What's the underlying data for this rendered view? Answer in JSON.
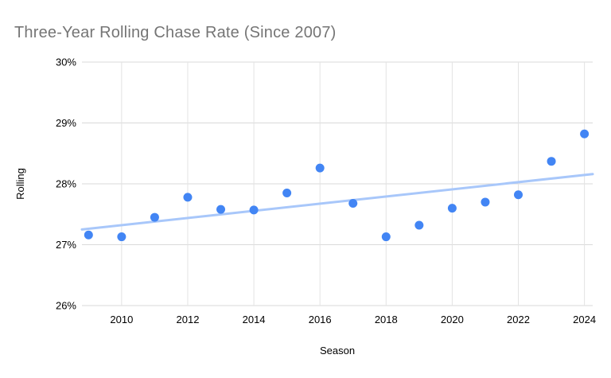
{
  "chart_data": {
    "type": "scatter",
    "title": "Three-Year Rolling Chase Rate (Since 2007)",
    "xlabel": "Season",
    "ylabel": "Rolling",
    "x": [
      2009,
      2010,
      2011,
      2012,
      2013,
      2014,
      2015,
      2016,
      2017,
      2018,
      2019,
      2020,
      2021,
      2022,
      2023,
      2024
    ],
    "values": [
      27.16,
      27.13,
      27.45,
      27.78,
      27.58,
      27.57,
      27.85,
      28.26,
      27.68,
      27.13,
      27.32,
      27.6,
      27.7,
      27.82,
      28.37,
      28.82
    ],
    "xlim": [
      2008.8,
      2024.25
    ],
    "ylim": [
      26,
      30
    ],
    "x_ticks": [
      2010,
      2012,
      2014,
      2016,
      2018,
      2020,
      2022,
      2024
    ],
    "y_ticks": [
      26,
      27,
      28,
      29,
      30
    ],
    "y_tick_suffix": "%",
    "grid": true,
    "legend_position": "none",
    "trendline": {
      "x1": 2008.8,
      "v1": 27.25,
      "x2": 2024.25,
      "v2": 28.16
    },
    "colors": {
      "point": "#4285f4",
      "trend": "#a8c7fa",
      "grid_h": "#d9d9d9",
      "grid_v": "#e3e3e3",
      "tick_text": "#000000",
      "axis_title": "#000000",
      "title": "#757575"
    }
  }
}
